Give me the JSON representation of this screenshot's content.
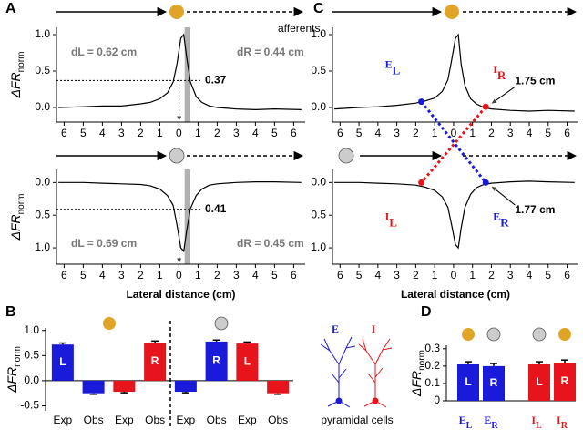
{
  "chart_data": [
    {
      "type": "line",
      "ylabel": "ΔFR",
      "ylabel_sub": "norm",
      "x": [
        -6.3,
        -5,
        -4,
        -3,
        -2,
        -1.5,
        -1,
        -0.6,
        -0.3,
        -0.1,
        0.1,
        0.25,
        0.4,
        0.6,
        0.9,
        1.2,
        1.6,
        2,
        3,
        4,
        5,
        6.4
      ],
      "values": [
        0.0,
        0.01,
        0.02,
        0.02,
        0.05,
        0.07,
        0.12,
        0.2,
        0.35,
        0.6,
        0.95,
        1.0,
        0.7,
        0.35,
        0.15,
        0.07,
        0.02,
        0.0,
        -0.02,
        -0.03,
        -0.02,
        -0.03
      ],
      "color": "#000000",
      "xlim": [
        -6.4,
        6.6
      ],
      "ylim": [
        -0.2,
        1.1
      ],
      "y_inverted": false,
      "xticks": [
        {
          "value": -6,
          "label": "6"
        },
        {
          "value": -5,
          "label": "5"
        },
        {
          "value": -4,
          "label": "4"
        },
        {
          "value": -3,
          "label": "3"
        },
        {
          "value": -2,
          "label": "2"
        },
        {
          "value": -1,
          "label": "1"
        },
        0,
        1,
        2,
        3,
        4,
        5,
        6
      ],
      "yticks": [
        {
          "value": 0,
          "label": "0.0"
        },
        0.5,
        {
          "value": 1,
          "label": "1.0"
        }
      ],
      "annotations": [
        "dL = 0.62 cm",
        "dR = 0.44 cm"
      ],
      "level": 0.37,
      "band": [
        0.3,
        0.6
      ]
    },
    {
      "type": "line",
      "ylabel": "ΔFR",
      "ylabel_sub": "norm",
      "xlabel": "Lateral distance (cm)",
      "x": [
        -6.3,
        -5,
        -4,
        -3,
        -2,
        -1.5,
        -1,
        -0.6,
        -0.3,
        -0.1,
        0.1,
        0.25,
        0.4,
        0.6,
        0.9,
        1.2,
        1.6,
        2,
        3,
        4,
        5,
        6.4
      ],
      "values": [
        0.0,
        0.0,
        0.01,
        0.02,
        0.03,
        0.05,
        0.1,
        0.2,
        0.35,
        0.65,
        1.0,
        1.05,
        0.75,
        0.4,
        0.2,
        0.1,
        0.04,
        0.02,
        0.0,
        -0.01,
        -0.01,
        0.0
      ],
      "color": "#000000",
      "xlim": [
        -6.4,
        6.6
      ],
      "ylim": [
        -0.2,
        1.25
      ],
      "y_inverted": true,
      "xticks": [
        {
          "value": -6,
          "label": "6"
        },
        {
          "value": -5,
          "label": "5"
        },
        {
          "value": -4,
          "label": "4"
        },
        {
          "value": -3,
          "label": "3"
        },
        {
          "value": -2,
          "label": "2"
        },
        {
          "value": -1,
          "label": "1"
        },
        0,
        1,
        2,
        3,
        4,
        5,
        6
      ],
      "yticks": [
        {
          "value": 0,
          "label": "0.0"
        },
        0.5,
        {
          "value": 1,
          "label": "1.0"
        }
      ],
      "annotations": [
        "dL = 0.69 cm",
        "dR = 0.45 cm"
      ],
      "level": 0.41,
      "band": [
        0.3,
        0.6
      ]
    },
    {
      "type": "line",
      "annotation": "afferents",
      "x": [
        -6.3,
        -5,
        -4,
        -3,
        -2,
        -1.5,
        -1,
        -0.6,
        -0.3,
        -0.1,
        0.1,
        0.25,
        0.4,
        0.6,
        0.9,
        1.2,
        1.6,
        2,
        3,
        4,
        5,
        6.4
      ],
      "values": [
        -0.02,
        0.0,
        0.01,
        0.03,
        0.06,
        0.09,
        0.13,
        0.22,
        0.38,
        0.65,
        0.95,
        1.0,
        0.6,
        0.3,
        0.12,
        0.05,
        0.0,
        -0.02,
        -0.04,
        -0.05,
        -0.04,
        -0.05
      ],
      "color": "#000000",
      "xlim": [
        -6.4,
        6.6
      ],
      "ylim": [
        -0.2,
        1.1
      ],
      "y_inverted": false,
      "xticks": [
        {
          "value": -6,
          "label": "6"
        },
        {
          "value": -5,
          "label": "5"
        },
        {
          "value": -4,
          "label": "4"
        },
        {
          "value": -3,
          "label": "3"
        },
        {
          "value": -2,
          "label": "2"
        },
        {
          "value": -1,
          "label": "1"
        },
        0,
        1,
        2,
        3,
        4,
        5,
        6
      ],
      "yticks": [
        {
          "value": 0,
          "label": "0.0"
        },
        0.5,
        {
          "value": 1,
          "label": "1.0"
        }
      ],
      "markers": [
        {
          "letter": "E",
          "sub": "L",
          "x": -1.7,
          "y": 0.08,
          "color": "#1a1adb"
        },
        {
          "letter": "I",
          "sub": "R",
          "x": 1.7,
          "y": 0.01,
          "color": "#e8141b"
        }
      ],
      "distance_label": "1.75 cm"
    },
    {
      "type": "line",
      "xlabel": "Lateral distance (cm)",
      "x": [
        -6.3,
        -5,
        -4,
        -3,
        -2,
        -1.5,
        -1,
        -0.6,
        -0.3,
        -0.1,
        0.1,
        0.25,
        0.4,
        0.6,
        0.9,
        1.2,
        1.6,
        2,
        3,
        4,
        5,
        6.4
      ],
      "values": [
        0.0,
        0.0,
        0.01,
        0.02,
        0.04,
        0.07,
        0.12,
        0.22,
        0.38,
        0.65,
        0.95,
        1.0,
        0.7,
        0.38,
        0.18,
        0.08,
        0.03,
        0.01,
        -0.01,
        -0.02,
        -0.01,
        0.0
      ],
      "color": "#000000",
      "xlim": [
        -6.4,
        6.6
      ],
      "ylim": [
        -0.2,
        1.25
      ],
      "y_inverted": true,
      "xticks": [
        {
          "value": -6,
          "label": "6"
        },
        {
          "value": -5,
          "label": "5"
        },
        {
          "value": -4,
          "label": "4"
        },
        {
          "value": -3,
          "label": "3"
        },
        {
          "value": -2,
          "label": "2"
        },
        {
          "value": -1,
          "label": "1"
        },
        0,
        1,
        2,
        3,
        4,
        5,
        6
      ],
      "yticks": [
        {
          "value": 0,
          "label": "0.0"
        },
        0.5,
        {
          "value": 1,
          "label": "1.0"
        }
      ],
      "markers": [
        {
          "letter": "I",
          "sub": "L",
          "x": -1.7,
          "y": 0.0,
          "color": "#e8141b"
        },
        {
          "letter": "E",
          "sub": "R",
          "x": 1.7,
          "y": 0.0,
          "color": "#1a1adb"
        }
      ],
      "distance_label": "1.77 cm"
    },
    {
      "type": "bar",
      "ylabel": "ΔFR",
      "ylabel_sub": "norm",
      "categories": [
        "Exp",
        "Obs",
        "Exp",
        "Obs",
        "Exp",
        "Obs",
        "Exp",
        "Obs"
      ],
      "values": [
        0.72,
        -0.25,
        -0.22,
        0.76,
        -0.22,
        0.78,
        0.74,
        -0.25
      ],
      "errors": [
        0.03,
        0.02,
        0.02,
        0.03,
        0.02,
        0.03,
        0.03,
        0.02
      ],
      "colors": [
        "#1a1adb",
        "#1a1adb",
        "#e8141b",
        "#e8141b",
        "#1a1adb",
        "#1a1adb",
        "#e8141b",
        "#e8141b"
      ],
      "bar_labels": [
        "L",
        null,
        null,
        "R",
        null,
        "R",
        "L",
        null
      ],
      "ylim": [
        -0.6,
        1.05
      ],
      "yticks": [
        -0.5,
        {
          "value": 0,
          "label": "0.0"
        },
        0.5,
        {
          "value": 1,
          "label": "1.0"
        }
      ],
      "legend": [
        "E",
        "I",
        "pyramidal cells"
      ]
    },
    {
      "type": "bar",
      "ylabel": "ΔFR",
      "ylabel_sub": "norm",
      "categories": [
        "E",
        "E",
        "I",
        "I"
      ],
      "category_subs": [
        "L",
        "R",
        "L",
        "R"
      ],
      "values": [
        0.21,
        0.2,
        0.21,
        0.22
      ],
      "errors": [
        0.015,
        0.015,
        0.015,
        0.015
      ],
      "colors": [
        "#1a1adb",
        "#1a1adb",
        "#e8141b",
        "#e8141b"
      ],
      "bar_labels": [
        "L",
        "R",
        "L",
        "R"
      ],
      "ylim": [
        0,
        0.32
      ],
      "yticks": [
        0,
        0.1,
        0.2,
        0.3
      ]
    }
  ]
}
